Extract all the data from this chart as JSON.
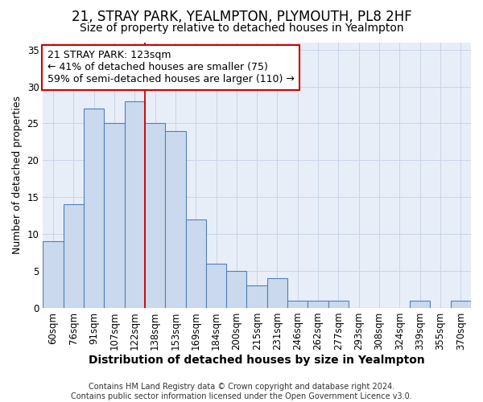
{
  "title1": "21, STRAY PARK, YEALMPTON, PLYMOUTH, PL8 2HF",
  "title2": "Size of property relative to detached houses in Yealmpton",
  "xlabel": "Distribution of detached houses by size in Yealmpton",
  "ylabel": "Number of detached properties",
  "categories": [
    "60sqm",
    "76sqm",
    "91sqm",
    "107sqm",
    "122sqm",
    "138sqm",
    "153sqm",
    "169sqm",
    "184sqm",
    "200sqm",
    "215sqm",
    "231sqm",
    "246sqm",
    "262sqm",
    "277sqm",
    "293sqm",
    "308sqm",
    "324sqm",
    "339sqm",
    "355sqm",
    "370sqm"
  ],
  "values": [
    9,
    14,
    27,
    25,
    28,
    25,
    24,
    12,
    6,
    5,
    3,
    4,
    1,
    1,
    1,
    0,
    0,
    0,
    1,
    0,
    1
  ],
  "bar_color": "#cad9ed",
  "bar_edge_color": "#5080b8",
  "vline_color": "#cc0000",
  "vline_bar_index": 4,
  "annotation_text": "21 STRAY PARK: 123sqm\n← 41% of detached houses are smaller (75)\n59% of semi-detached houses are larger (110) →",
  "annotation_box_color": "#ffffff",
  "annotation_box_edge_color": "#cc0000",
  "ylim": [
    0,
    36
  ],
  "yticks": [
    0,
    5,
    10,
    15,
    20,
    25,
    30,
    35
  ],
  "grid_color": "#c8d4e8",
  "background_color": "#e8eef8",
  "footnote": "Contains HM Land Registry data © Crown copyright and database right 2024.\nContains public sector information licensed under the Open Government Licence v3.0.",
  "title1_fontsize": 12,
  "title2_fontsize": 10,
  "xlabel_fontsize": 10,
  "ylabel_fontsize": 9,
  "tick_fontsize": 8.5,
  "annotation_fontsize": 9,
  "footnote_fontsize": 7
}
